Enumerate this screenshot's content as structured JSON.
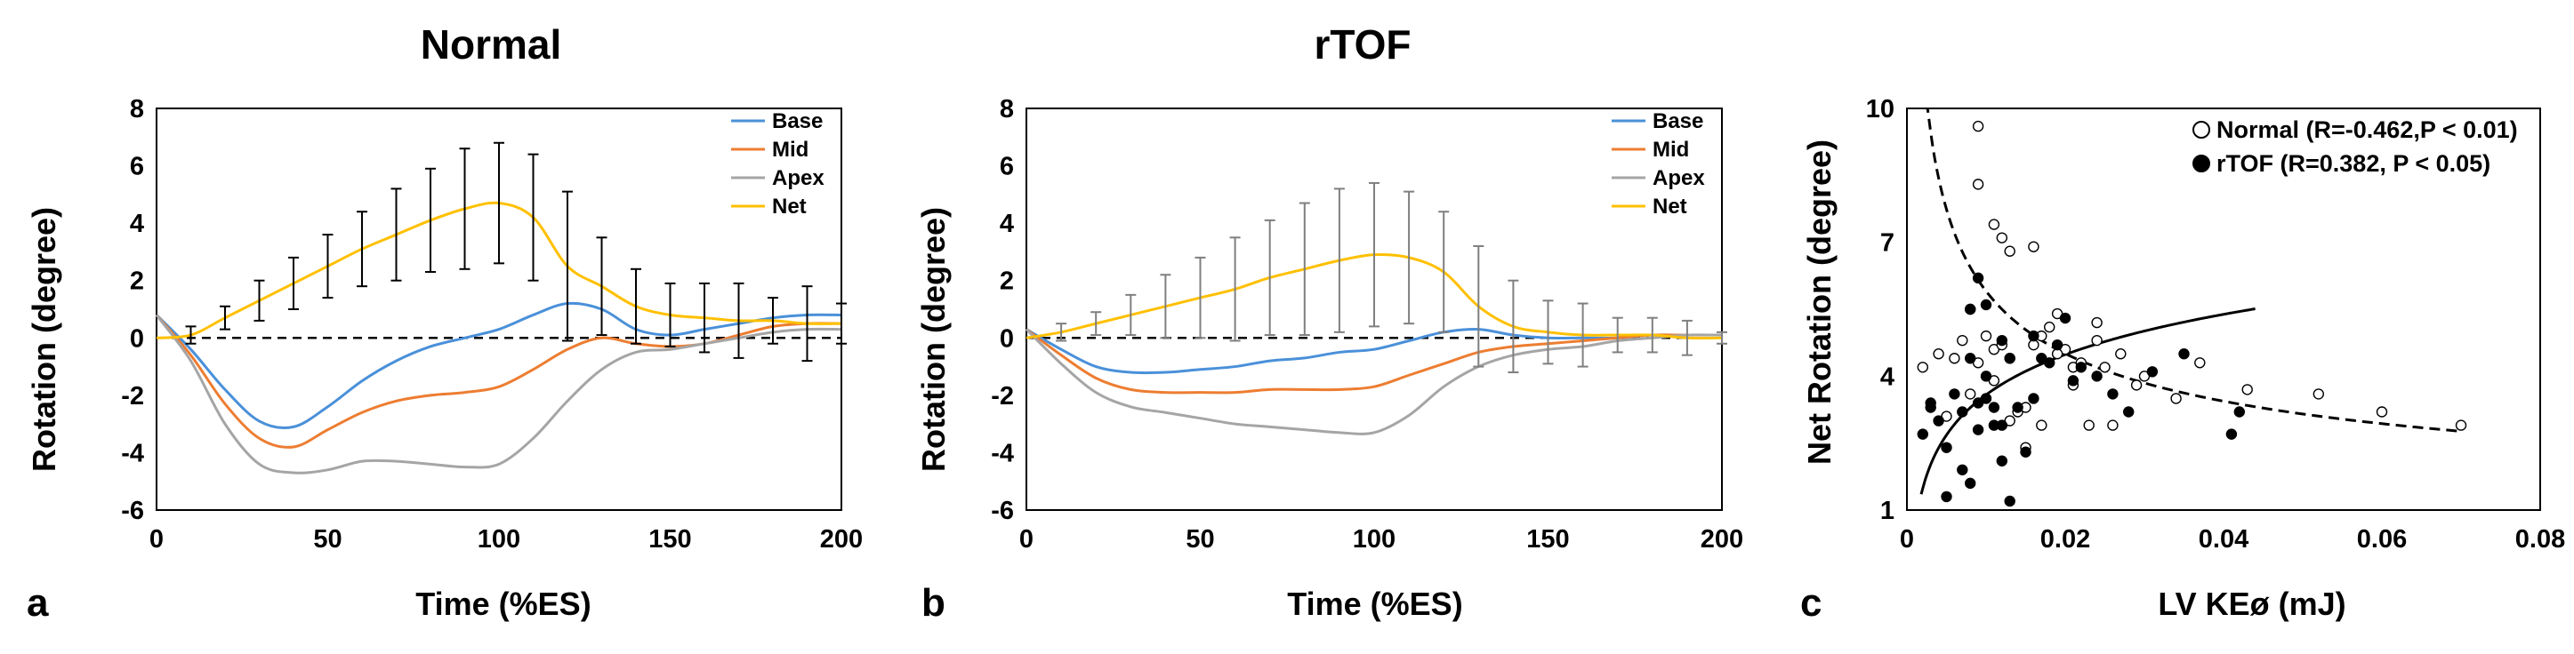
{
  "chart_data": [
    {
      "panel": "a",
      "type": "line",
      "title": "Normal",
      "xlabel": "Time (%ES)",
      "ylabel": "Rotation (degree)",
      "xlim": [
        0,
        200
      ],
      "ylim": [
        -6,
        8
      ],
      "xticks": [
        0,
        50,
        100,
        150,
        200
      ],
      "yticks": [
        -6,
        -4,
        -2,
        0,
        2,
        4,
        6,
        8
      ],
      "legend_position": "top-right",
      "zero_line": "dashed",
      "x": [
        0,
        10,
        20,
        30,
        40,
        50,
        60,
        70,
        80,
        90,
        100,
        110,
        120,
        130,
        140,
        150,
        160,
        170,
        180,
        190,
        200
      ],
      "series": [
        {
          "name": "Base",
          "color": "#4a90d9",
          "values": [
            0.8,
            -0.4,
            -1.8,
            -2.9,
            -3.1,
            -2.4,
            -1.5,
            -0.8,
            -0.3,
            0.0,
            0.3,
            0.8,
            1.2,
            1.0,
            0.3,
            0.1,
            0.3,
            0.5,
            0.7,
            0.8,
            0.8
          ]
        },
        {
          "name": "Mid",
          "color": "#ed7d31",
          "values": [
            0.8,
            -0.6,
            -2.3,
            -3.5,
            -3.8,
            -3.2,
            -2.6,
            -2.2,
            -2.0,
            -1.9,
            -1.7,
            -1.1,
            -0.4,
            0.0,
            -0.2,
            -0.3,
            -0.2,
            0.1,
            0.4,
            0.5,
            0.5
          ]
        },
        {
          "name": "Apex",
          "color": "#a5a5a5",
          "values": [
            0.8,
            -0.8,
            -3.0,
            -4.4,
            -4.7,
            -4.6,
            -4.3,
            -4.3,
            -4.4,
            -4.5,
            -4.4,
            -3.5,
            -2.2,
            -1.1,
            -0.5,
            -0.4,
            -0.2,
            0.0,
            0.2,
            0.3,
            0.3
          ]
        },
        {
          "name": "Net",
          "color": "#ffc000",
          "values": [
            0.0,
            0.1,
            0.7,
            1.3,
            1.9,
            2.5,
            3.1,
            3.6,
            4.1,
            4.5,
            4.7,
            4.2,
            2.5,
            1.8,
            1.1,
            0.8,
            0.7,
            0.6,
            0.6,
            0.5,
            0.5
          ],
          "error": [
            0.0,
            0.3,
            0.4,
            0.7,
            0.9,
            1.1,
            1.3,
            1.6,
            1.8,
            2.1,
            2.1,
            2.2,
            2.6,
            1.7,
            1.3,
            1.1,
            1.2,
            1.3,
            0.8,
            1.3,
            0.7
          ]
        }
      ]
    },
    {
      "panel": "b",
      "type": "line",
      "title": "rTOF",
      "xlabel": "Time (%ES)",
      "ylabel": "Rotation (degree)",
      "xlim": [
        0,
        200
      ],
      "ylim": [
        -6,
        8
      ],
      "xticks": [
        0,
        50,
        100,
        150,
        200
      ],
      "yticks": [
        -6,
        -4,
        -2,
        0,
        2,
        4,
        6,
        8
      ],
      "legend_position": "top-right",
      "zero_line": "dashed",
      "x": [
        0,
        10,
        20,
        30,
        40,
        50,
        60,
        70,
        80,
        90,
        100,
        110,
        120,
        130,
        140,
        150,
        160,
        170,
        180,
        190,
        200
      ],
      "series": [
        {
          "name": "Base",
          "color": "#4a90d9",
          "values": [
            0.3,
            -0.4,
            -1.0,
            -1.2,
            -1.2,
            -1.1,
            -1.0,
            -0.8,
            -0.7,
            -0.5,
            -0.4,
            -0.1,
            0.2,
            0.3,
            0.1,
            0.0,
            0.0,
            0.0,
            0.1,
            0.1,
            0.1
          ]
        },
        {
          "name": "Mid",
          "color": "#ed7d31",
          "values": [
            0.3,
            -0.6,
            -1.4,
            -1.8,
            -1.9,
            -1.9,
            -1.9,
            -1.8,
            -1.8,
            -1.8,
            -1.7,
            -1.3,
            -0.9,
            -0.5,
            -0.3,
            -0.2,
            -0.1,
            0.0,
            0.1,
            0.1,
            0.1
          ]
        },
        {
          "name": "Apex",
          "color": "#a5a5a5",
          "values": [
            0.3,
            -0.9,
            -1.9,
            -2.4,
            -2.6,
            -2.8,
            -3.0,
            -3.1,
            -3.2,
            -3.3,
            -3.3,
            -2.7,
            -1.7,
            -1.0,
            -0.6,
            -0.4,
            -0.3,
            -0.1,
            0.0,
            0.1,
            0.1
          ]
        },
        {
          "name": "Net",
          "color": "#ffc000",
          "values": [
            0.0,
            0.2,
            0.5,
            0.8,
            1.1,
            1.4,
            1.7,
            2.1,
            2.4,
            2.7,
            2.9,
            2.8,
            2.3,
            1.1,
            0.4,
            0.2,
            0.1,
            0.1,
            0.1,
            0.0,
            0.0
          ],
          "error": [
            0.0,
            0.3,
            0.4,
            0.7,
            1.1,
            1.4,
            1.8,
            2.0,
            2.3,
            2.5,
            2.5,
            2.3,
            2.1,
            2.1,
            1.6,
            1.1,
            1.1,
            0.6,
            0.6,
            0.6,
            0.2
          ]
        }
      ]
    },
    {
      "panel": "c",
      "type": "scatter",
      "xlabel": "LV KEø (mJ)",
      "ylabel": "Net Rotation (degree)",
      "xlim": [
        0,
        0.08
      ],
      "ylim": [
        1,
        10
      ],
      "xticks": [
        0,
        0.02,
        0.04,
        0.06,
        0.08
      ],
      "yticks": [
        1,
        4,
        7,
        10
      ],
      "legend_position": "top-right",
      "series": [
        {
          "name": "Normal (R=-0.462,P < 0.01)",
          "marker": "open-circle",
          "x": [
            0.009,
            0.009,
            0.011,
            0.012,
            0.013,
            0.016,
            0.002,
            0.004,
            0.006,
            0.007,
            0.008,
            0.009,
            0.01,
            0.011,
            0.012,
            0.013,
            0.014,
            0.015,
            0.016,
            0.017,
            0.018,
            0.019,
            0.02,
            0.021,
            0.022,
            0.023,
            0.024,
            0.025,
            0.027,
            0.029,
            0.03,
            0.034,
            0.037,
            0.043,
            0.052,
            0.06,
            0.07,
            0.005,
            0.008,
            0.011,
            0.013,
            0.015,
            0.017,
            0.019,
            0.021,
            0.024,
            0.026
          ],
          "y": [
            9.6,
            8.3,
            7.4,
            7.1,
            6.8,
            6.9,
            4.2,
            4.5,
            4.4,
            4.8,
            5.5,
            4.3,
            4.9,
            4.6,
            4.7,
            4.4,
            3.2,
            2.4,
            4.7,
            4.9,
            5.1,
            5.4,
            4.6,
            4.2,
            4.3,
            2.9,
            4.8,
            4.2,
            4.5,
            3.8,
            4.0,
            3.5,
            4.3,
            3.7,
            3.6,
            3.2,
            2.9,
            3.1,
            3.6,
            3.9,
            3.0,
            3.3,
            2.9,
            4.5,
            3.8,
            5.2,
            2.9
          ]
        },
        {
          "name": "rTOF (R=0.382, P < 0.05)",
          "marker": "filled-circle",
          "x": [
            0.002,
            0.003,
            0.003,
            0.004,
            0.005,
            0.006,
            0.007,
            0.007,
            0.008,
            0.008,
            0.009,
            0.009,
            0.009,
            0.01,
            0.01,
            0.011,
            0.011,
            0.012,
            0.012,
            0.013,
            0.013,
            0.014,
            0.015,
            0.016,
            0.016,
            0.017,
            0.018,
            0.019,
            0.02,
            0.021,
            0.022,
            0.024,
            0.026,
            0.028,
            0.031,
            0.035,
            0.041,
            0.042,
            0.005,
            0.008,
            0.01,
            0.012
          ],
          "y": [
            2.7,
            3.4,
            3.3,
            3.0,
            1.3,
            3.6,
            1.9,
            3.2,
            5.5,
            4.4,
            6.2,
            3.4,
            2.8,
            4.0,
            5.6,
            3.3,
            2.9,
            4.8,
            2.1,
            1.2,
            4.4,
            3.3,
            2.3,
            4.9,
            3.5,
            4.4,
            4.3,
            4.7,
            5.3,
            3.9,
            4.2,
            4.0,
            3.6,
            3.2,
            4.1,
            4.5,
            2.7,
            3.2,
            2.4,
            1.6,
            3.5,
            2.9
          ]
        }
      ],
      "fits": [
        {
          "series": "Normal (R=-0.462,P < 0.01)",
          "style": "dashed",
          "kind": "power",
          "a": 0.98,
          "b": -0.39,
          "x_range": [
            0.0025,
            0.07
          ]
        },
        {
          "series": "rTOF (R=0.382, P < 0.05)",
          "style": "solid",
          "kind": "log",
          "a": 9.57,
          "b": 1.3,
          "x_range": [
            0.0018,
            0.044
          ]
        }
      ]
    }
  ],
  "panel_letters": [
    "a",
    "b",
    "c"
  ]
}
